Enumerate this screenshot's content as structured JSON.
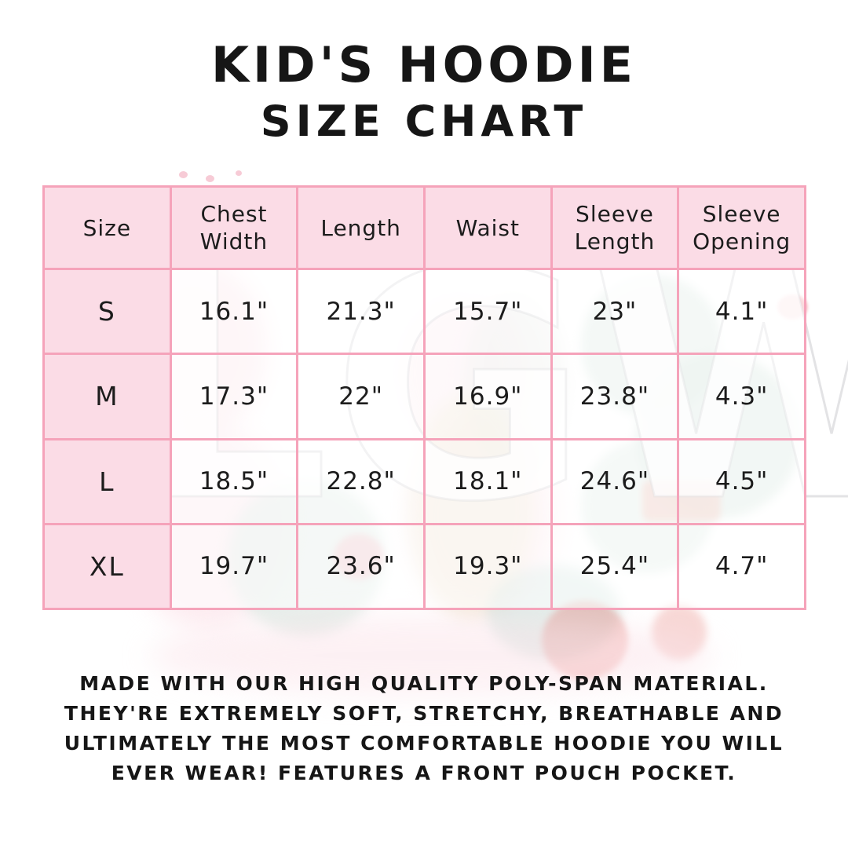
{
  "title": {
    "line1": "KID'S HOODIE",
    "line2": "SIZE CHART"
  },
  "watermark": "LGW",
  "table": {
    "headers": [
      "Size",
      "Chest Width",
      "Length",
      "Waist",
      "Sleeve Length",
      "Sleeve Opening"
    ],
    "rows": [
      {
        "size": "S",
        "values": [
          "16.1\"",
          "21.3\"",
          "15.7\"",
          "23\"",
          "4.1\""
        ]
      },
      {
        "size": "M",
        "values": [
          "17.3\"",
          "22\"",
          "16.9\"",
          "23.8\"",
          "4.3\""
        ]
      },
      {
        "size": "L",
        "values": [
          "18.5\"",
          "22.8\"",
          "18.1\"",
          "24.6\"",
          "4.5\""
        ]
      },
      {
        "size": "XL",
        "values": [
          "19.7\"",
          "23.6\"",
          "19.3\"",
          "25.4\"",
          "4.7\""
        ]
      }
    ]
  },
  "description": {
    "lines": [
      "MADE WITH OUR HIGH QUALITY POLY-SPAN MATERIAL.",
      "THEY'RE EXTREMELY SOFT, STRETCHY, BREATHABLE AND",
      "ULTIMATELY THE MOST COMFORTABLE HOODIE YOU WILL",
      "EVER WEAR! FEATURES A FRONT POUCH POCKET."
    ]
  },
  "colors": {
    "table_border": "#f5a3ba",
    "header_fill": "#fbdce6",
    "text": "#1c1c1c",
    "watercolor_mint": "#d9e8e1",
    "watercolor_pink": "#fbdce4",
    "watercolor_red_flower": "#e2574f"
  }
}
